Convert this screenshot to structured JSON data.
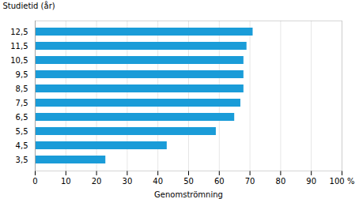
{
  "chart_data": {
    "type": "bar",
    "orientation": "horizontal",
    "xlabel": "Genomströmning",
    "ylabel": "Studietid (år)",
    "categories": [
      "3,5",
      "4,5",
      "5,5",
      "6,5",
      "7,5",
      "8,5",
      "9,5",
      "10,5",
      "11,5",
      "12,5"
    ],
    "values": [
      23,
      43,
      59,
      65,
      67,
      68,
      68,
      68,
      69,
      71
    ],
    "color": "#1a9cd8",
    "xlim": [
      0,
      100
    ],
    "xticks": [
      0,
      10,
      20,
      30,
      40,
      50,
      60,
      70,
      80,
      90,
      {
        "value": 100,
        "label": "100 %"
      }
    ],
    "grid": true
  }
}
